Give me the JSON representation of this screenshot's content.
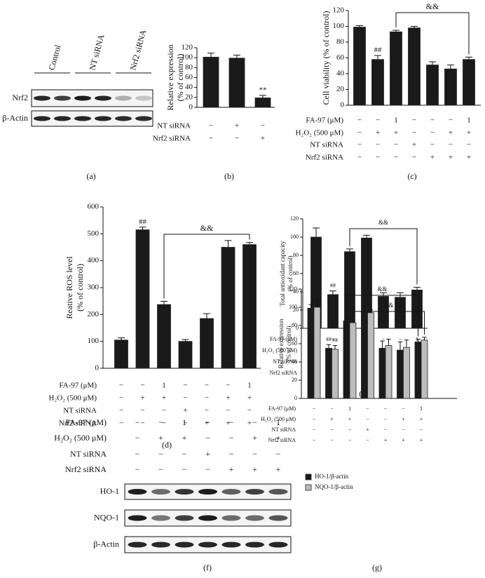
{
  "chart_data": [
    {
      "type": "bar",
      "label": "(b)",
      "ylabel": [
        "Relative expression",
        "(% of control)"
      ],
      "ylim": [
        0,
        120
      ],
      "yticks": [
        0,
        20,
        40,
        60,
        80,
        100,
        120
      ],
      "values": [
        101,
        99,
        19
      ],
      "errors": [
        8,
        6,
        5
      ],
      "color": "#1a1a1a",
      "conditions": [
        {
          "label": "NT siRNA",
          "marks": [
            "−",
            "+",
            "−"
          ]
        },
        {
          "label": "Nrf2 siRNA",
          "marks": [
            "−",
            "−",
            "+"
          ]
        }
      ],
      "annotations": [
        "**"
      ]
    },
    {
      "type": "bar",
      "label": "(c)",
      "ylabel": [
        "Cell viability (% of control)"
      ],
      "ylim": [
        0,
        120
      ],
      "yticks": [
        0,
        20,
        40,
        60,
        80,
        100,
        120
      ],
      "values": [
        99,
        58,
        93,
        98,
        51,
        46,
        58
      ],
      "errors": [
        2,
        5,
        2,
        2,
        4,
        5,
        3
      ],
      "color": "#1a1a1a",
      "conditions": [
        {
          "label": "FA-97 (μM)",
          "marks": [
            "−",
            "−",
            "1",
            "−",
            "−",
            "−",
            "1"
          ]
        },
        {
          "label": "H₂O₂ (500 μM)",
          "marks": [
            "−",
            "+",
            "+",
            "−",
            "−",
            "+",
            "+"
          ]
        },
        {
          "label": "NT siRNA",
          "marks": [
            "−",
            "−",
            "−",
            "+",
            "−",
            "−",
            "−"
          ]
        },
        {
          "label": "Nrf2 siRNA",
          "marks": [
            "−",
            "−",
            "−",
            "−",
            "+",
            "+",
            "+"
          ]
        }
      ],
      "annotations": [
        "##",
        "&&"
      ]
    },
    {
      "type": "bar",
      "label": "(d)",
      "ylabel": [
        "Reative ROS level",
        "(% of control)"
      ],
      "ylim": [
        0,
        600
      ],
      "yticks": [
        0,
        100,
        200,
        300,
        400,
        500,
        600
      ],
      "values": [
        105,
        515,
        237,
        100,
        185,
        450,
        460
      ],
      "errors": [
        8,
        10,
        12,
        7,
        18,
        25,
        8
      ],
      "color": "#1a1a1a",
      "conditions": [
        {
          "label": "FA-97 (μM)",
          "marks": [
            "−",
            "−",
            "1",
            "−",
            "−",
            "−",
            "1"
          ]
        },
        {
          "label": "H₂O₂ (500 μM)",
          "marks": [
            "−",
            "+",
            "+",
            "−",
            "−",
            "+",
            "+"
          ]
        },
        {
          "label": "NT siRNA",
          "marks": [
            "−",
            "−",
            "−",
            "+",
            "−",
            "−",
            "−"
          ]
        },
        {
          "label": "Nrf2 siRNA",
          "marks": [
            "−",
            "−",
            "−",
            "−",
            "+",
            "+",
            "+"
          ]
        }
      ],
      "annotations": [
        "##",
        "&&"
      ]
    },
    {
      "type": "bar",
      "label": "(e)",
      "ylabel": [
        "Total antioxidant capacity",
        "(% of control)"
      ],
      "ylim": [
        0,
        120
      ],
      "yticks": [
        0,
        20,
        40,
        60,
        80,
        100,
        120
      ],
      "values": [
        100,
        37,
        84,
        99,
        35,
        34,
        42
      ],
      "errors": [
        10,
        4,
        3,
        3,
        4,
        5,
        3
      ],
      "color": "#1a1a1a",
      "conditions": [
        {
          "label": "FA-97 (μM)",
          "marks": [
            "−",
            "−",
            "1",
            "−",
            "−",
            "−",
            "1"
          ]
        },
        {
          "label": "H₂O₂ (500 μM)",
          "marks": [
            "−",
            "+",
            "+",
            "−",
            "−",
            "+",
            "+"
          ]
        },
        {
          "label": "NT siRNA",
          "marks": [
            "−",
            "−",
            "−",
            "+",
            "−",
            "−",
            "−"
          ]
        },
        {
          "label": "Nrf2 siRNA",
          "marks": [
            "−",
            "−",
            "−",
            "−",
            "+",
            "+",
            "+"
          ]
        }
      ],
      "annotations": [
        "##",
        "&&"
      ]
    },
    {
      "type": "bar",
      "label": "(g)",
      "ylabel": [
        "Relative expression",
        "(% of control)"
      ],
      "ylim": [
        0,
        120
      ],
      "yticks": [
        0,
        20,
        40,
        60,
        80,
        100,
        120
      ],
      "series": [
        {
          "name": "HO-1/β-actin",
          "color": "#1a1a1a",
          "values": [
            99,
            55,
            85,
            98,
            55,
            53,
            62
          ],
          "errors": [
            4,
            4,
            3,
            3,
            8,
            9,
            3
          ]
        },
        {
          "name": "NQO-1/β-actin",
          "color": "#bdbdbd",
          "values": [
            100,
            54,
            83,
            94,
            58,
            56,
            64
          ],
          "errors": [
            8,
            4,
            3,
            3,
            7,
            8,
            3
          ]
        }
      ],
      "conditions": [
        {
          "label": "FA-97 (μM)",
          "marks": [
            "−",
            "−",
            "1",
            "−",
            "−",
            "−",
            "1"
          ]
        },
        {
          "label": "H₂O₂ (500 μM)",
          "marks": [
            "−",
            "+",
            "+",
            "−",
            "−",
            "+",
            "+"
          ]
        },
        {
          "label": "NT siRNA",
          "marks": [
            "−",
            "−",
            "−",
            "+",
            "−",
            "−",
            "−"
          ]
        },
        {
          "label": "Nrf2 siRNA",
          "marks": [
            "−",
            "−",
            "−",
            "−",
            "+",
            "+",
            "+"
          ]
        }
      ],
      "annotations": [
        "##",
        "##",
        "&&",
        "&&"
      ]
    }
  ],
  "blots": [
    {
      "label": "(a)",
      "groups": [
        "Control",
        "NT siRNA",
        "Nrf2 siRNA"
      ],
      "rows": [
        "Nrf2",
        "β-Actin"
      ]
    },
    {
      "label": "(f)",
      "conditions": [
        {
          "label": "FA-97 (μM)",
          "marks": [
            "−",
            "−",
            "1",
            "−",
            "−",
            "−",
            "1"
          ]
        },
        {
          "label": "H₂O₂ (500 μM)",
          "marks": [
            "−",
            "+",
            "+",
            "−",
            "−",
            "+",
            "+"
          ]
        },
        {
          "label": "NT siRNA",
          "marks": [
            "−",
            "−",
            "−",
            "+",
            "−",
            "−",
            "−"
          ]
        },
        {
          "label": "Nrf2 siRNA",
          "marks": [
            "−",
            "−",
            "−",
            "−",
            "+",
            "+",
            "+"
          ]
        }
      ],
      "rows": [
        "HO-1",
        "NQO-1",
        "β-Actin"
      ]
    }
  ]
}
